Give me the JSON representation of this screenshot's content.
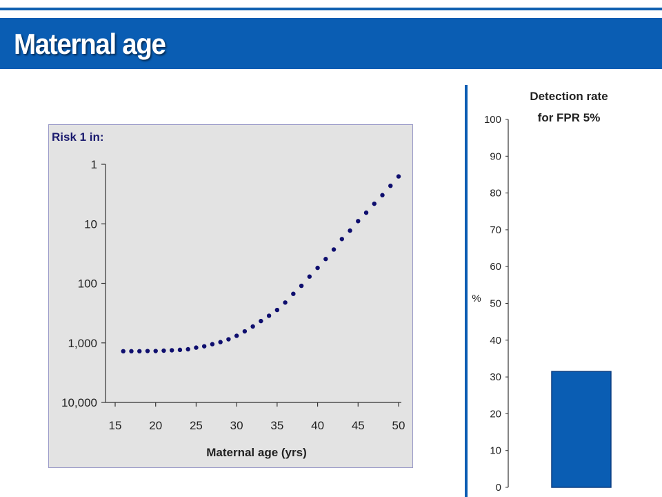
{
  "slide": {
    "title": "Maternal age"
  },
  "chart_data": [
    {
      "type": "scatter",
      "title": "",
      "ylabel": "Risk 1 in:",
      "xlabel": "Maternal age (yrs)",
      "x_ticks": [
        15,
        20,
        25,
        30,
        35,
        40,
        45,
        50
      ],
      "y_scale": "log",
      "y_axis_inverted": true,
      "y_ticks": [
        1,
        10,
        100,
        1000,
        10000
      ],
      "y_tick_labels": [
        "1",
        "10",
        "100",
        "1,000",
        "10,000"
      ],
      "xlim": [
        15,
        50
      ],
      "ylim": [
        1,
        10000
      ],
      "grid": false,
      "background": "#e3e3e3",
      "point_color": "#0e0e6e",
      "x": [
        16,
        17,
        18,
        19,
        20,
        21,
        22,
        23,
        24,
        25,
        26,
        27,
        28,
        29,
        30,
        31,
        32,
        33,
        34,
        35,
        36,
        37,
        38,
        39,
        40,
        41,
        42,
        43,
        44,
        45,
        46,
        47,
        48,
        49,
        50
      ],
      "y": [
        1380,
        1380,
        1380,
        1370,
        1370,
        1350,
        1330,
        1310,
        1280,
        1200,
        1140,
        1050,
        970,
        870,
        760,
        640,
        530,
        430,
        350,
        280,
        210,
        150,
        110,
        77,
        55,
        39,
        27,
        18,
        13,
        9,
        6.5,
        4.6,
        3.3,
        2.3,
        1.6
      ]
    },
    {
      "type": "bar",
      "title": "Detection rate\nfor FPR 5%",
      "title_lines": [
        "Detection rate",
        "for FPR 5%"
      ],
      "ylabel": "%",
      "categories": [
        ""
      ],
      "values": [
        31.5
      ],
      "ylim": [
        0,
        100
      ],
      "y_ticks": [
        0,
        10,
        20,
        30,
        40,
        50,
        60,
        70,
        80,
        90,
        100
      ],
      "grid": false,
      "bar_color": "#0a5db3"
    }
  ]
}
